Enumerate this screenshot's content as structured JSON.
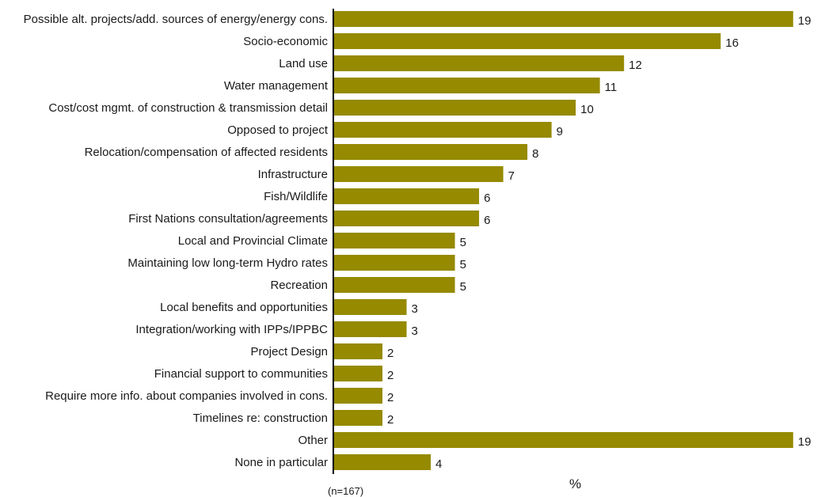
{
  "chart_data": {
    "type": "bar",
    "orientation": "horizontal",
    "categories": [
      "Possible alt. projects/add. sources of energy/energy cons.",
      "Socio-economic",
      "Land use",
      "Water management",
      "Cost/cost mgmt. of construction & transmission detail",
      "Opposed to project",
      "Relocation/compensation of affected residents",
      "Infrastructure",
      "Fish/Wildlife",
      "First Nations consultation/agreements",
      "Local and Provincial Climate",
      "Maintaining low long-term Hydro rates",
      "Recreation",
      "Local benefits and opportunities",
      "Integration/working with IPPs/IPPBC",
      "Project Design",
      "Financial support to communities",
      "Require more info. about companies involved in cons.",
      "Timelines re: construction",
      "Other",
      "None in particular"
    ],
    "values": [
      19,
      16,
      12,
      11,
      10,
      9,
      8,
      7,
      6,
      6,
      5,
      5,
      5,
      3,
      3,
      2,
      2,
      2,
      2,
      19,
      4
    ],
    "data_labels": [
      "19",
      "16",
      "12",
      "11",
      "10",
      "9",
      "8",
      "7",
      "6",
      "6",
      "5",
      "5",
      "5",
      "3",
      "3",
      "2",
      "2",
      "2",
      "2",
      "19",
      "4"
    ],
    "xlabel": "%",
    "note": "(n=167)",
    "xlim": [
      0,
      19.4
    ],
    "grid": false,
    "legend": "none",
    "bar_color": "#958a00"
  }
}
